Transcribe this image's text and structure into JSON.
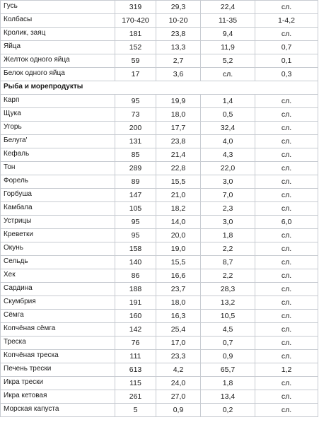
{
  "rows": [
    {
      "name": "Гусь",
      "v1": "319",
      "v2": "29,3",
      "v3": "22,4",
      "v4": "сл."
    },
    {
      "name": "Колбасы",
      "v1": "170-420",
      "v2": "10-20",
      "v3": "11-35",
      "v4": "1-4,2"
    },
    {
      "name": "Кролик, заяц",
      "v1": "181",
      "v2": "23,8",
      "v3": "9,4",
      "v4": "сл."
    },
    {
      "name": "Яйца",
      "v1": "152",
      "v2": "13,3",
      "v3": "11,9",
      "v4": "0,7"
    },
    {
      "name": "Желток одного яйца",
      "v1": "59",
      "v2": "2,7",
      "v3": "5,2",
      "v4": "0,1"
    },
    {
      "name": "Белок одного яйца",
      "v1": "17",
      "v2": "3,6",
      "v3": "сл.",
      "v4": "0,3"
    },
    {
      "section": "Рыба и морепродукты"
    },
    {
      "name": "Карп",
      "v1": "95",
      "v2": "19,9",
      "v3": "1,4",
      "v4": "сл."
    },
    {
      "name": "Щука",
      "v1": "73",
      "v2": "18,0",
      "v3": "0,5",
      "v4": "сл."
    },
    {
      "name": "Угорь",
      "v1": "200",
      "v2": "17,7",
      "v3": "32,4",
      "v4": "сл."
    },
    {
      "name": "Белуга'",
      "v1": "131",
      "v2": "23,8",
      "v3": "4,0",
      "v4": "сл."
    },
    {
      "name": "Кефаль",
      "v1": "85",
      "v2": "21,4",
      "v3": "4,3",
      "v4": "сл."
    },
    {
      "name": "Тон",
      "v1": "289",
      "v2": "22,8",
      "v3": "22,0",
      "v4": "сл."
    },
    {
      "name": "Форель",
      "v1": "89",
      "v2": "15,5",
      "v3": "3,0",
      "v4": "сл."
    },
    {
      "name": "Горбуша",
      "v1": "147",
      "v2": "21,0",
      "v3": "7,0",
      "v4": "сл."
    },
    {
      "name": "Камбала",
      "v1": "105",
      "v2": "18,2",
      "v3": "2,3",
      "v4": "сл."
    },
    {
      "name": "Устрицы",
      "v1": "95",
      "v2": "14,0",
      "v3": "3,0",
      "v4": "6,0"
    },
    {
      "name": "Креветки",
      "v1": "95",
      "v2": "20,0",
      "v3": "1,8",
      "v4": "сл."
    },
    {
      "name": "Окунь",
      "v1": "158",
      "v2": "19,0",
      "v3": "2,2",
      "v4": "сл."
    },
    {
      "name": "Сельдь",
      "v1": "140",
      "v2": "15,5",
      "v3": "8,7",
      "v4": "сл."
    },
    {
      "name": "Хек",
      "v1": "86",
      "v2": "16,6",
      "v3": "2,2",
      "v4": "сл."
    },
    {
      "name": "Сардина",
      "v1": "188",
      "v2": "23,7",
      "v3": "28,3",
      "v4": "сл."
    },
    {
      "name": "Скумбрия",
      "v1": "191",
      "v2": "18,0",
      "v3": "13,2",
      "v4": "сл."
    },
    {
      "name": "Сёмга",
      "v1": "160",
      "v2": "16,3",
      "v3": "10,5",
      "v4": "сл."
    },
    {
      "name": "Копчёная сёмга",
      "v1": "142",
      "v2": "25,4",
      "v3": "4,5",
      "v4": "сл."
    },
    {
      "name": "Треска",
      "v1": "76",
      "v2": "17,0",
      "v3": "0,7",
      "v4": "сл."
    },
    {
      "name": "Копчёная треска",
      "v1": "111",
      "v2": "23,3",
      "v3": "0,9",
      "v4": "сл."
    },
    {
      "name": "Печень трески",
      "v1": "613",
      "v2": "4,2",
      "v3": "65,7",
      "v4": "1,2"
    },
    {
      "name": "Икра трески",
      "v1": "115",
      "v2": "24,0",
      "v3": "1,8",
      "v4": "сл."
    },
    {
      "name": "Икра кетовая",
      "v1": "261",
      "v2": "27,0",
      "v3": "13,4",
      "v4": "сл."
    },
    {
      "name": "Морская капуста",
      "v1": "5",
      "v2": "0,9",
      "v3": "0,2",
      "v4": "сл."
    }
  ]
}
